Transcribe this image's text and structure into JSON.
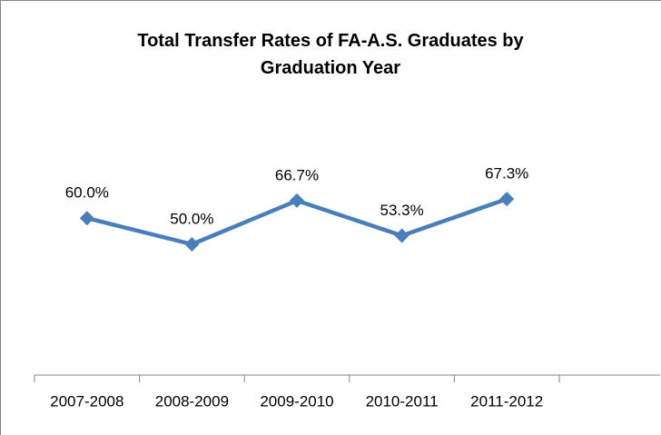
{
  "chart_data": {
    "type": "line",
    "title": "Total Transfer Rates of FA-A.S. Graduates by Graduation Year",
    "categories": [
      "2007-2008",
      "2008-2009",
      "2009-2010",
      "2010-2011",
      "2011-2012",
      null
    ],
    "series": [
      {
        "name": null,
        "color": "#4a7ebb",
        "values": [
          60.0,
          50.0,
          66.7,
          53.3,
          67.3,
          null
        ],
        "value_labels": [
          "60.0%",
          "50.0%",
          "66.7%",
          "53.3%",
          "67.3%",
          null
        ]
      }
    ],
    "ylim": [
      0,
      100
    ]
  }
}
